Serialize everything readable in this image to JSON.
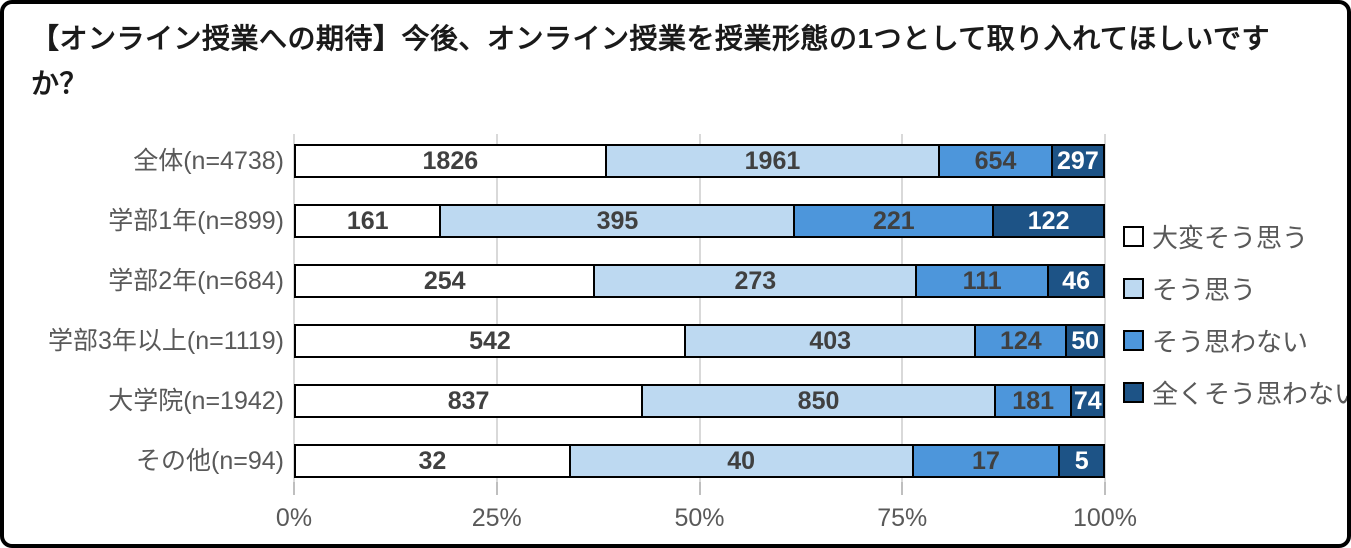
{
  "title": "【オンライン授業への期待】今後、オンライン授業を授業形態の1つとして取り入れてほしいですか？",
  "chart_data": {
    "type": "bar",
    "stacked": true,
    "orientation": "horizontal",
    "normalized": "100% stacked (segment width = value / row total)",
    "title": "【オンライン授業への期待】今後、オンライン授業を授業形態の1つとして取り入れてほしいですか？",
    "categories": [
      "全体(n=4738)",
      "学部1年(n=899)",
      "学部2年(n=684)",
      "学部3年以上(n=1119)",
      "大学院(n=1942)",
      "その他(n=94)"
    ],
    "row_totals": [
      4738,
      899,
      684,
      1119,
      1942,
      94
    ],
    "series": [
      {
        "name": "大変そう思う",
        "color": "#ffffff",
        "label_color": "#404040",
        "values": [
          1826,
          161,
          254,
          542,
          837,
          32
        ]
      },
      {
        "name": "そう思う",
        "color": "#bdd9f1",
        "label_color": "#404040",
        "values": [
          1961,
          395,
          273,
          403,
          850,
          40
        ]
      },
      {
        "name": "そう思わない",
        "color": "#4d96db",
        "label_color": "#404040",
        "values": [
          654,
          221,
          111,
          124,
          181,
          17
        ]
      },
      {
        "name": "全くそう思わない",
        "color": "#1d5386",
        "label_color": "#ffffff",
        "values": [
          297,
          122,
          46,
          50,
          74,
          5
        ]
      }
    ],
    "x_axis": {
      "tick_labels": [
        "0%",
        "25%",
        "50%",
        "75%",
        "100%"
      ],
      "range": [
        0,
        100
      ],
      "grid": true
    },
    "legend": {
      "position": "right",
      "entries": [
        "大変そう思う",
        "そう思う",
        "そう思わない",
        "全くそう思わない"
      ]
    },
    "colors": {
      "grid": "#d9d9d9",
      "axis_text": "#595959",
      "category_text": "#595959",
      "bar_border": "#000000",
      "frame_border": "#000000"
    }
  }
}
